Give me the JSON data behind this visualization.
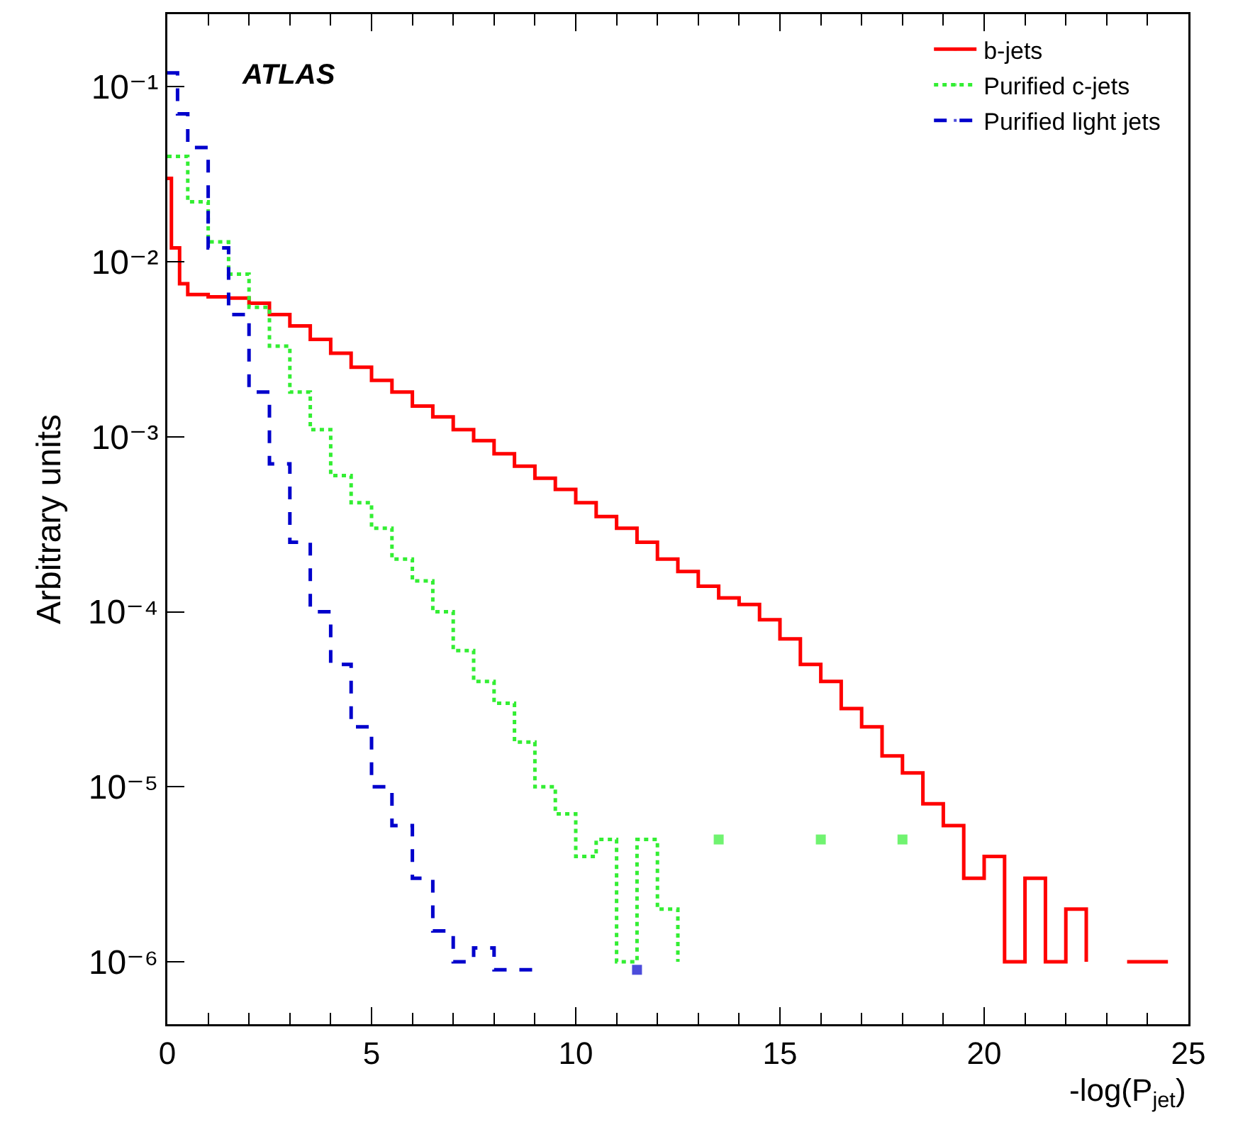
{
  "chart_data": {
    "type": "step",
    "xlabel": "-log(P$_{jet}$)",
    "ylabel": "Arbitrary units",
    "annotations": [
      "ATLAS"
    ],
    "log": "y",
    "grid": false,
    "legend": "top right",
    "xlim": [
      0,
      25
    ],
    "xticks": [
      0,
      5,
      10,
      15,
      20,
      25
    ],
    "ylim": [
      4.4e-07,
      0.26
    ],
    "yticks": [
      {
        "value": 1e-06,
        "label": "10⁻⁶"
      },
      {
        "value": 1e-05,
        "label": "10⁻⁵"
      },
      {
        "value": 0.0001,
        "label": "10⁻⁴"
      },
      {
        "value": 0.001,
        "label": "10⁻³"
      },
      {
        "value": 0.01,
        "label": "10⁻²"
      },
      {
        "value": 0.1,
        "label": "10⁻¹"
      }
    ],
    "series": [
      {
        "name": "b-jets",
        "color": "#ff0000",
        "line_style": "solid",
        "x": [
          0,
          0.1,
          0.3,
          0.5,
          1,
          1.5,
          2,
          2.5,
          3,
          3.5,
          4,
          4.5,
          5,
          5.5,
          6,
          6.5,
          7,
          7.5,
          8,
          8.5,
          9,
          9.5,
          10,
          10.5,
          11,
          11.5,
          12,
          12.5,
          13,
          13.5,
          14,
          14.5,
          15,
          15.5,
          16,
          16.5,
          17,
          17.5,
          18,
          18.5,
          19,
          19.5,
          20,
          20.5,
          21,
          21.5,
          22,
          22.5,
          23,
          23.5,
          24,
          24.5
        ],
        "values": [
          0.03,
          0.012,
          0.0075,
          0.0065,
          0.0063,
          0.0062,
          0.0058,
          0.005,
          0.0043,
          0.0036,
          0.003,
          0.0025,
          0.0021,
          0.0018,
          0.0015,
          0.0013,
          0.0011,
          0.00095,
          0.0008,
          0.00068,
          0.00058,
          0.0005,
          0.00042,
          0.00035,
          0.0003,
          0.00025,
          0.0002,
          0.00017,
          0.00014,
          0.00012,
          0.00011,
          9e-05,
          7e-05,
          5e-05,
          4e-05,
          2.8e-05,
          2.2e-05,
          1.5e-05,
          1.2e-05,
          8e-06,
          6e-06,
          3e-06,
          4e-06,
          1e-06,
          3e-06,
          1e-06,
          2e-06,
          1e-06,
          null,
          1e-06,
          1e-06,
          1e-06
        ]
      },
      {
        "name": "Purified c-jets",
        "color": "#33ee33",
        "line_style": "dotted",
        "x": [
          0,
          0.5,
          1,
          1.5,
          2,
          2.5,
          3,
          3.5,
          4,
          4.5,
          5,
          5.5,
          6,
          6.5,
          7,
          7.5,
          8,
          8.5,
          9,
          9.5,
          10,
          10.5,
          11,
          11.5,
          12,
          12.5,
          13,
          13.5,
          14,
          16,
          16.5,
          18
        ],
        "values": [
          0.04,
          0.022,
          0.013,
          0.0085,
          0.0055,
          0.0033,
          0.0018,
          0.0011,
          0.0006,
          0.00042,
          0.0003,
          0.0002,
          0.00015,
          0.0001,
          6e-05,
          4e-05,
          3e-05,
          1.8e-05,
          1e-05,
          7e-06,
          4e-06,
          5e-06,
          1e-06,
          5e-06,
          2e-06,
          1e-06,
          null,
          5e-06,
          null,
          5e-06,
          null,
          5e-06
        ]
      },
      {
        "name": "Purified light jets",
        "color": "#0000cc",
        "line_style": "dashed",
        "x": [
          0,
          0.25,
          0.5,
          1,
          1.5,
          2,
          2.5,
          3,
          3.5,
          4,
          4.5,
          5,
          5.5,
          6,
          6.5,
          7,
          7.5,
          8,
          8.5,
          9,
          9.5,
          11.5
        ],
        "values": [
          0.12,
          0.07,
          0.045,
          0.012,
          0.005,
          0.0018,
          0.0007,
          0.00025,
          0.0001,
          5e-05,
          2.2e-05,
          1e-05,
          6e-06,
          3e-06,
          1.5e-06,
          1e-06,
          1.2e-06,
          9e-07,
          9e-07,
          9e-07,
          null,
          9e-07
        ]
      }
    ]
  }
}
